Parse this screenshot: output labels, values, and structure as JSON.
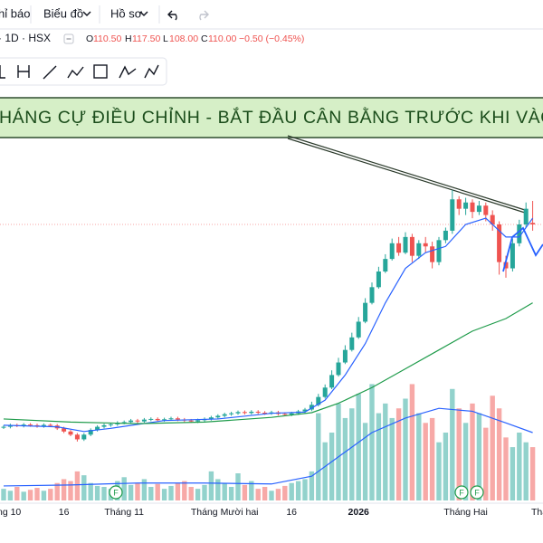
{
  "toolbar": {
    "items": [
      "hỉ báo",
      "Biểu đồ",
      "Hồ sơ"
    ]
  },
  "header": {
    "symbol": "· 1D · HSX",
    "open_label": "O",
    "open": "110.50",
    "high_label": "H",
    "high": "117.50",
    "low_label": "L",
    "low": "108.00",
    "close_label": "C",
    "close": "110.00",
    "change": "−0.50 (−0.45%)"
  },
  "banner": "HÁNG CỰ ĐIỀU CHỈNH - BẮT ĐẦU CÂN BẰNG TRƯỚC KHI VÀO PH",
  "markers": [
    "F",
    "F",
    "F"
  ],
  "chart_data": {
    "type": "candlestick",
    "categories": [
      "ng 10",
      null,
      null,
      null,
      null,
      null,
      null,
      null,
      null,
      "16",
      null,
      null,
      null,
      null,
      null,
      null,
      null,
      null,
      "Tháng 11",
      null,
      null,
      null,
      null,
      null,
      null,
      null,
      null,
      null,
      null,
      null,
      null,
      null,
      null,
      "Tháng Mười hai",
      null,
      null,
      null,
      null,
      null,
      null,
      null,
      null,
      null,
      "16",
      null,
      null,
      null,
      null,
      null,
      null,
      null,
      null,
      null,
      "2026",
      null,
      null,
      null,
      null,
      null,
      null,
      null,
      null,
      null,
      null,
      null,
      null,
      null,
      null,
      null,
      "Tháng Hai",
      null,
      null,
      null,
      null,
      null,
      null,
      null,
      null,
      null,
      "Thá"
    ],
    "open": [
      45.2,
      45.5,
      46,
      45.8,
      46.2,
      46,
      45.7,
      46.1,
      45.9,
      45,
      44,
      43,
      41.5,
      43,
      44.5,
      45.5,
      46,
      46.3,
      46.8,
      47,
      47.5,
      47.2,
      47.8,
      48,
      47.6,
      47.9,
      48.2,
      47.8,
      47.5,
      47.2,
      47.6,
      48,
      48.5,
      49,
      49.5,
      49.8,
      50.2,
      49.9,
      50.3,
      50,
      49.8,
      50.1,
      49.6,
      49.4,
      49.8,
      50.4,
      51,
      52.5,
      55,
      58,
      62,
      66,
      70,
      74,
      79,
      85,
      90,
      95,
      99,
      104,
      101,
      106,
      100,
      104,
      103,
      98,
      105,
      108,
      118,
      115,
      117,
      114,
      116,
      113,
      110,
      98,
      96,
      104,
      110,
      110.5
    ],
    "high": [
      46,
      46.5,
      46.5,
      46.7,
      46.7,
      46.5,
      46.6,
      46.6,
      46.4,
      45.5,
      44.5,
      43.5,
      43.5,
      45,
      46,
      46.5,
      46.8,
      47.3,
      47.5,
      48,
      48,
      48.3,
      48.5,
      48.5,
      48.4,
      48.7,
      48.7,
      48.3,
      48,
      48.1,
      48.5,
      49,
      49.5,
      50,
      50.3,
      50.7,
      50.7,
      50.8,
      50.8,
      50.5,
      50.6,
      50.6,
      50.1,
      50.3,
      50.9,
      51.5,
      53.5,
      56,
      59,
      63.5,
      67.5,
      71.5,
      75.5,
      80.5,
      86.5,
      91.5,
      96.5,
      100.5,
      105.5,
      106,
      107.5,
      107,
      105,
      106,
      104.5,
      106,
      109,
      121,
      119,
      118.5,
      118,
      117.5,
      117,
      114.5,
      111,
      100,
      105.5,
      111.5,
      117,
      117.5
    ],
    "low": [
      44.8,
      45,
      45.4,
      45.3,
      45.5,
      45.2,
      45.2,
      45.4,
      44.5,
      43.5,
      42.5,
      40.8,
      41,
      42.5,
      44,
      45,
      45.5,
      45.8,
      46.3,
      46.5,
      46.7,
      46.8,
      47.3,
      47.2,
      47.1,
      47.4,
      47.3,
      47,
      46.8,
      46.7,
      47.1,
      47.5,
      48,
      48.5,
      49,
      49.3,
      49.4,
      49.4,
      49.5,
      49.3,
      49.3,
      49.1,
      48.9,
      48.9,
      49.3,
      49.9,
      50.5,
      52,
      54.5,
      57.5,
      61.5,
      65.5,
      69.5,
      73.5,
      78.5,
      84.5,
      89.5,
      94.5,
      98.5,
      100,
      100.5,
      98,
      99,
      101,
      96,
      97,
      104,
      107,
      113,
      113,
      112,
      113,
      111,
      108,
      94,
      93,
      95,
      103,
      109,
      108
    ],
    "close": [
      45.5,
      46,
      45.8,
      46.2,
      46,
      45.7,
      46.1,
      45.9,
      45,
      44,
      43,
      41.5,
      43,
      44.5,
      45.5,
      46,
      46.3,
      46.8,
      47,
      47.5,
      47.2,
      47.8,
      48,
      47.6,
      47.9,
      48.2,
      47.8,
      47.5,
      47.2,
      47.6,
      48,
      48.5,
      49,
      49.5,
      49.8,
      50.2,
      49.9,
      50.3,
      50,
      49.8,
      50.1,
      49.6,
      49.4,
      49.8,
      50.4,
      51,
      52.5,
      55,
      58,
      62,
      66,
      70,
      74,
      79,
      85,
      90,
      95,
      99,
      104,
      101,
      106,
      100,
      104,
      103,
      98,
      105,
      108,
      118,
      115,
      117,
      114,
      116,
      113,
      110,
      98,
      96,
      104,
      110,
      115,
      110
    ],
    "volume": [
      12,
      10,
      14,
      9,
      11,
      13,
      10,
      12,
      18,
      22,
      20,
      30,
      26,
      18,
      15,
      14,
      12,
      20,
      24,
      16,
      18,
      22,
      14,
      17,
      12,
      15,
      18,
      20,
      14,
      12,
      16,
      30,
      22,
      18,
      14,
      28,
      16,
      20,
      12,
      14,
      10,
      12,
      15,
      18,
      20,
      22,
      30,
      90,
      60,
      70,
      100,
      85,
      95,
      110,
      80,
      120,
      90,
      100,
      85,
      95,
      105,
      120,
      90,
      80,
      85,
      60,
      70,
      115,
      95,
      80,
      100,
      90,
      75,
      108,
      95,
      65,
      55,
      70,
      60,
      55
    ],
    "ylim": [
      20,
      170
    ],
    "vlim": [
      0,
      140
    ],
    "up_color": "#26a69a",
    "down_color": "#ef5350",
    "lines": [
      {
        "color": "#2962ff",
        "x": [
          0,
          8,
          12,
          16,
          24,
          32,
          40,
          45,
          48,
          51,
          54,
          57,
          60,
          63,
          66,
          69,
          72,
          75,
          77,
          79
        ],
        "values": [
          46,
          45.5,
          44,
          45,
          47.5,
          48,
          49.8,
          50.2,
          54,
          62,
          72,
          85,
          96,
          101,
          103,
          110,
          112,
          106,
          106,
          112
        ]
      },
      {
        "color": "#1e9b4a",
        "x": [
          0,
          10,
          20,
          30,
          40,
          46,
          50,
          55,
          60,
          65,
          70,
          75,
          79
        ],
        "values": [
          48,
          47,
          46.5,
          47,
          48.5,
          50,
          53,
          58,
          64,
          70,
          76,
          80,
          85
        ]
      },
      {
        "color": "#2962ff",
        "axis": "volume",
        "x": [
          0,
          10,
          20,
          30,
          40,
          46,
          50,
          55,
          60,
          65,
          70,
          75,
          79
        ],
        "values": [
          15,
          16,
          18,
          18,
          17,
          25,
          45,
          70,
          85,
          95,
          92,
          80,
          70
        ]
      }
    ]
  }
}
